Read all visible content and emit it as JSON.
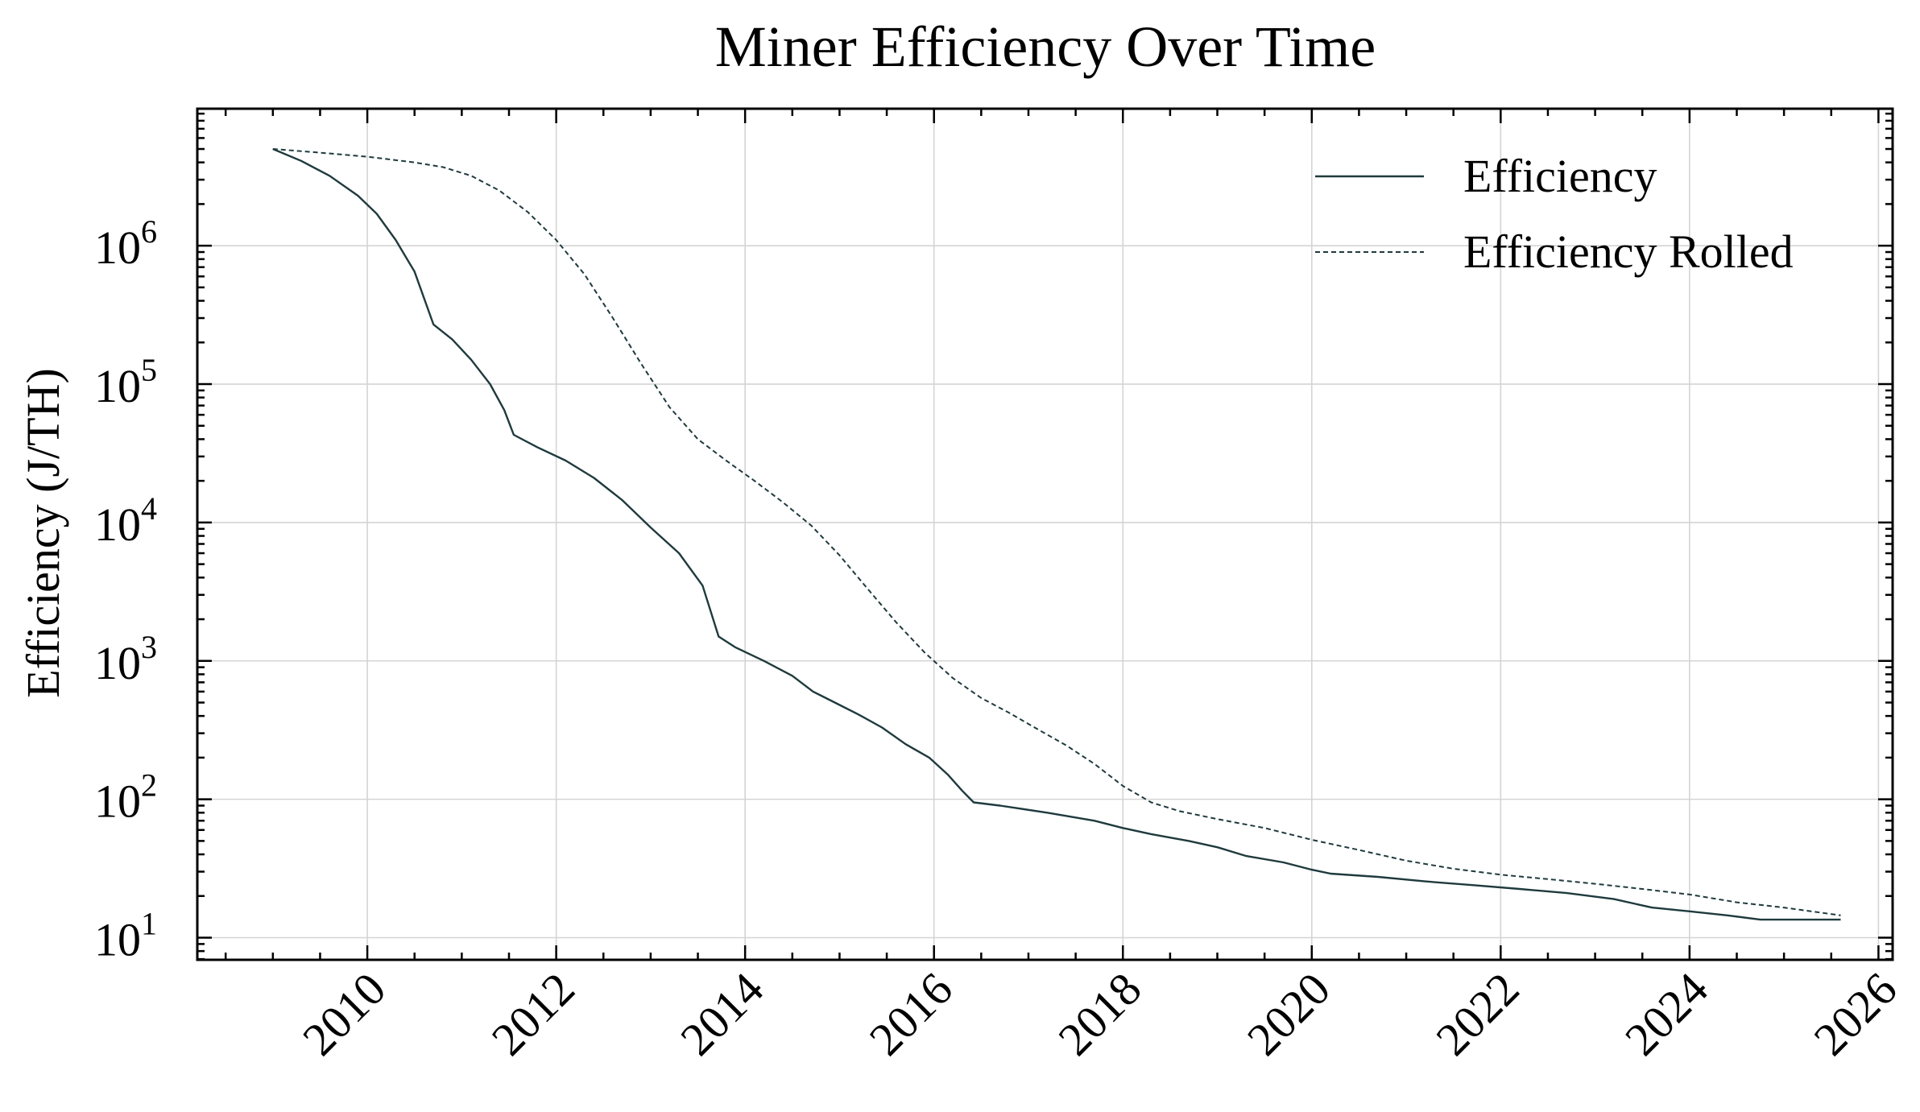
{
  "chart_data": {
    "type": "line",
    "title": "Miner Efficiency Over Time",
    "xlabel": "",
    "ylabel": "Efficiency (J/TH)",
    "y_scale": "log",
    "grid": true,
    "legend_position": "top-right",
    "xlim": [
      2008.2,
      2026.15
    ],
    "ylim_exponent": [
      0.84,
      6.99
    ],
    "x_tick_labels": [
      "2010",
      "2012",
      "2014",
      "2016",
      "2018",
      "2020",
      "2022",
      "2024",
      "2026"
    ],
    "y_tick_labels": [
      {
        "base": "10",
        "exp": "1"
      },
      {
        "base": "10",
        "exp": "2"
      },
      {
        "base": "10",
        "exp": "3"
      },
      {
        "base": "10",
        "exp": "4"
      },
      {
        "base": "10",
        "exp": "5"
      },
      {
        "base": "10",
        "exp": "6"
      }
    ],
    "color": "#1f3a3d",
    "series": [
      {
        "name": "Efficiency",
        "style": "solid",
        "points": [
          [
            2009.0,
            5000000
          ],
          [
            2009.3,
            4100000
          ],
          [
            2009.6,
            3200000
          ],
          [
            2009.9,
            2300000
          ],
          [
            2010.1,
            1700000
          ],
          [
            2010.3,
            1100000
          ],
          [
            2010.5,
            650000
          ],
          [
            2010.7,
            270000
          ],
          [
            2010.9,
            210000
          ],
          [
            2011.1,
            150000
          ],
          [
            2011.3,
            100000
          ],
          [
            2011.45,
            65000
          ],
          [
            2011.55,
            43000
          ],
          [
            2011.8,
            35000
          ],
          [
            2012.1,
            28000
          ],
          [
            2012.4,
            21000
          ],
          [
            2012.7,
            14500
          ],
          [
            2013.0,
            9200
          ],
          [
            2013.3,
            6000
          ],
          [
            2013.55,
            3500
          ],
          [
            2013.72,
            1500
          ],
          [
            2013.9,
            1250
          ],
          [
            2014.2,
            1000
          ],
          [
            2014.5,
            780
          ],
          [
            2014.72,
            600
          ],
          [
            2014.95,
            500
          ],
          [
            2015.2,
            410
          ],
          [
            2015.45,
            330
          ],
          [
            2015.7,
            250
          ],
          [
            2015.95,
            200
          ],
          [
            2016.15,
            150
          ],
          [
            2016.3,
            115
          ],
          [
            2016.42,
            95
          ],
          [
            2016.7,
            90
          ],
          [
            2017.2,
            80
          ],
          [
            2017.7,
            70
          ],
          [
            2018.0,
            62
          ],
          [
            2018.3,
            56
          ],
          [
            2018.7,
            50
          ],
          [
            2019.0,
            45
          ],
          [
            2019.3,
            39
          ],
          [
            2019.7,
            35
          ],
          [
            2020.0,
            31
          ],
          [
            2020.2,
            29
          ],
          [
            2020.7,
            27.5
          ],
          [
            2021.2,
            25.5
          ],
          [
            2021.7,
            24
          ],
          [
            2022.2,
            22.5
          ],
          [
            2022.7,
            21
          ],
          [
            2023.2,
            19
          ],
          [
            2023.6,
            16.5
          ],
          [
            2024.0,
            15.5
          ],
          [
            2024.4,
            14.5
          ],
          [
            2024.75,
            13.5
          ],
          [
            2025.2,
            13.5
          ],
          [
            2025.6,
            13.5
          ]
        ]
      },
      {
        "name": "Efficiency Rolled",
        "style": "dashed",
        "points": [
          [
            2009.0,
            5000000
          ],
          [
            2009.5,
            4700000
          ],
          [
            2010.0,
            4400000
          ],
          [
            2010.5,
            4000000
          ],
          [
            2010.8,
            3700000
          ],
          [
            2011.1,
            3200000
          ],
          [
            2011.4,
            2500000
          ],
          [
            2011.7,
            1750000
          ],
          [
            2012.0,
            1100000
          ],
          [
            2012.3,
            620000
          ],
          [
            2012.6,
            300000
          ],
          [
            2012.9,
            140000
          ],
          [
            2013.2,
            68000
          ],
          [
            2013.5,
            40000
          ],
          [
            2013.8,
            28000
          ],
          [
            2014.1,
            20000
          ],
          [
            2014.4,
            14000
          ],
          [
            2014.7,
            9500
          ],
          [
            2015.0,
            5800
          ],
          [
            2015.3,
            3300
          ],
          [
            2015.6,
            1900
          ],
          [
            2015.9,
            1150
          ],
          [
            2016.2,
            750
          ],
          [
            2016.5,
            540
          ],
          [
            2016.8,
            420
          ],
          [
            2017.1,
            320
          ],
          [
            2017.4,
            245
          ],
          [
            2017.7,
            180
          ],
          [
            2018.0,
            125
          ],
          [
            2018.3,
            95
          ],
          [
            2018.6,
            82
          ],
          [
            2019.0,
            72
          ],
          [
            2019.5,
            62
          ],
          [
            2020.0,
            51
          ],
          [
            2020.5,
            43
          ],
          [
            2021.0,
            36
          ],
          [
            2021.5,
            31.5
          ],
          [
            2022.0,
            28.5
          ],
          [
            2022.5,
            26.5
          ],
          [
            2023.0,
            24.5
          ],
          [
            2023.5,
            22.5
          ],
          [
            2024.0,
            20.5
          ],
          [
            2024.5,
            18
          ],
          [
            2025.0,
            16.5
          ],
          [
            2025.6,
            14.5
          ]
        ]
      }
    ]
  }
}
